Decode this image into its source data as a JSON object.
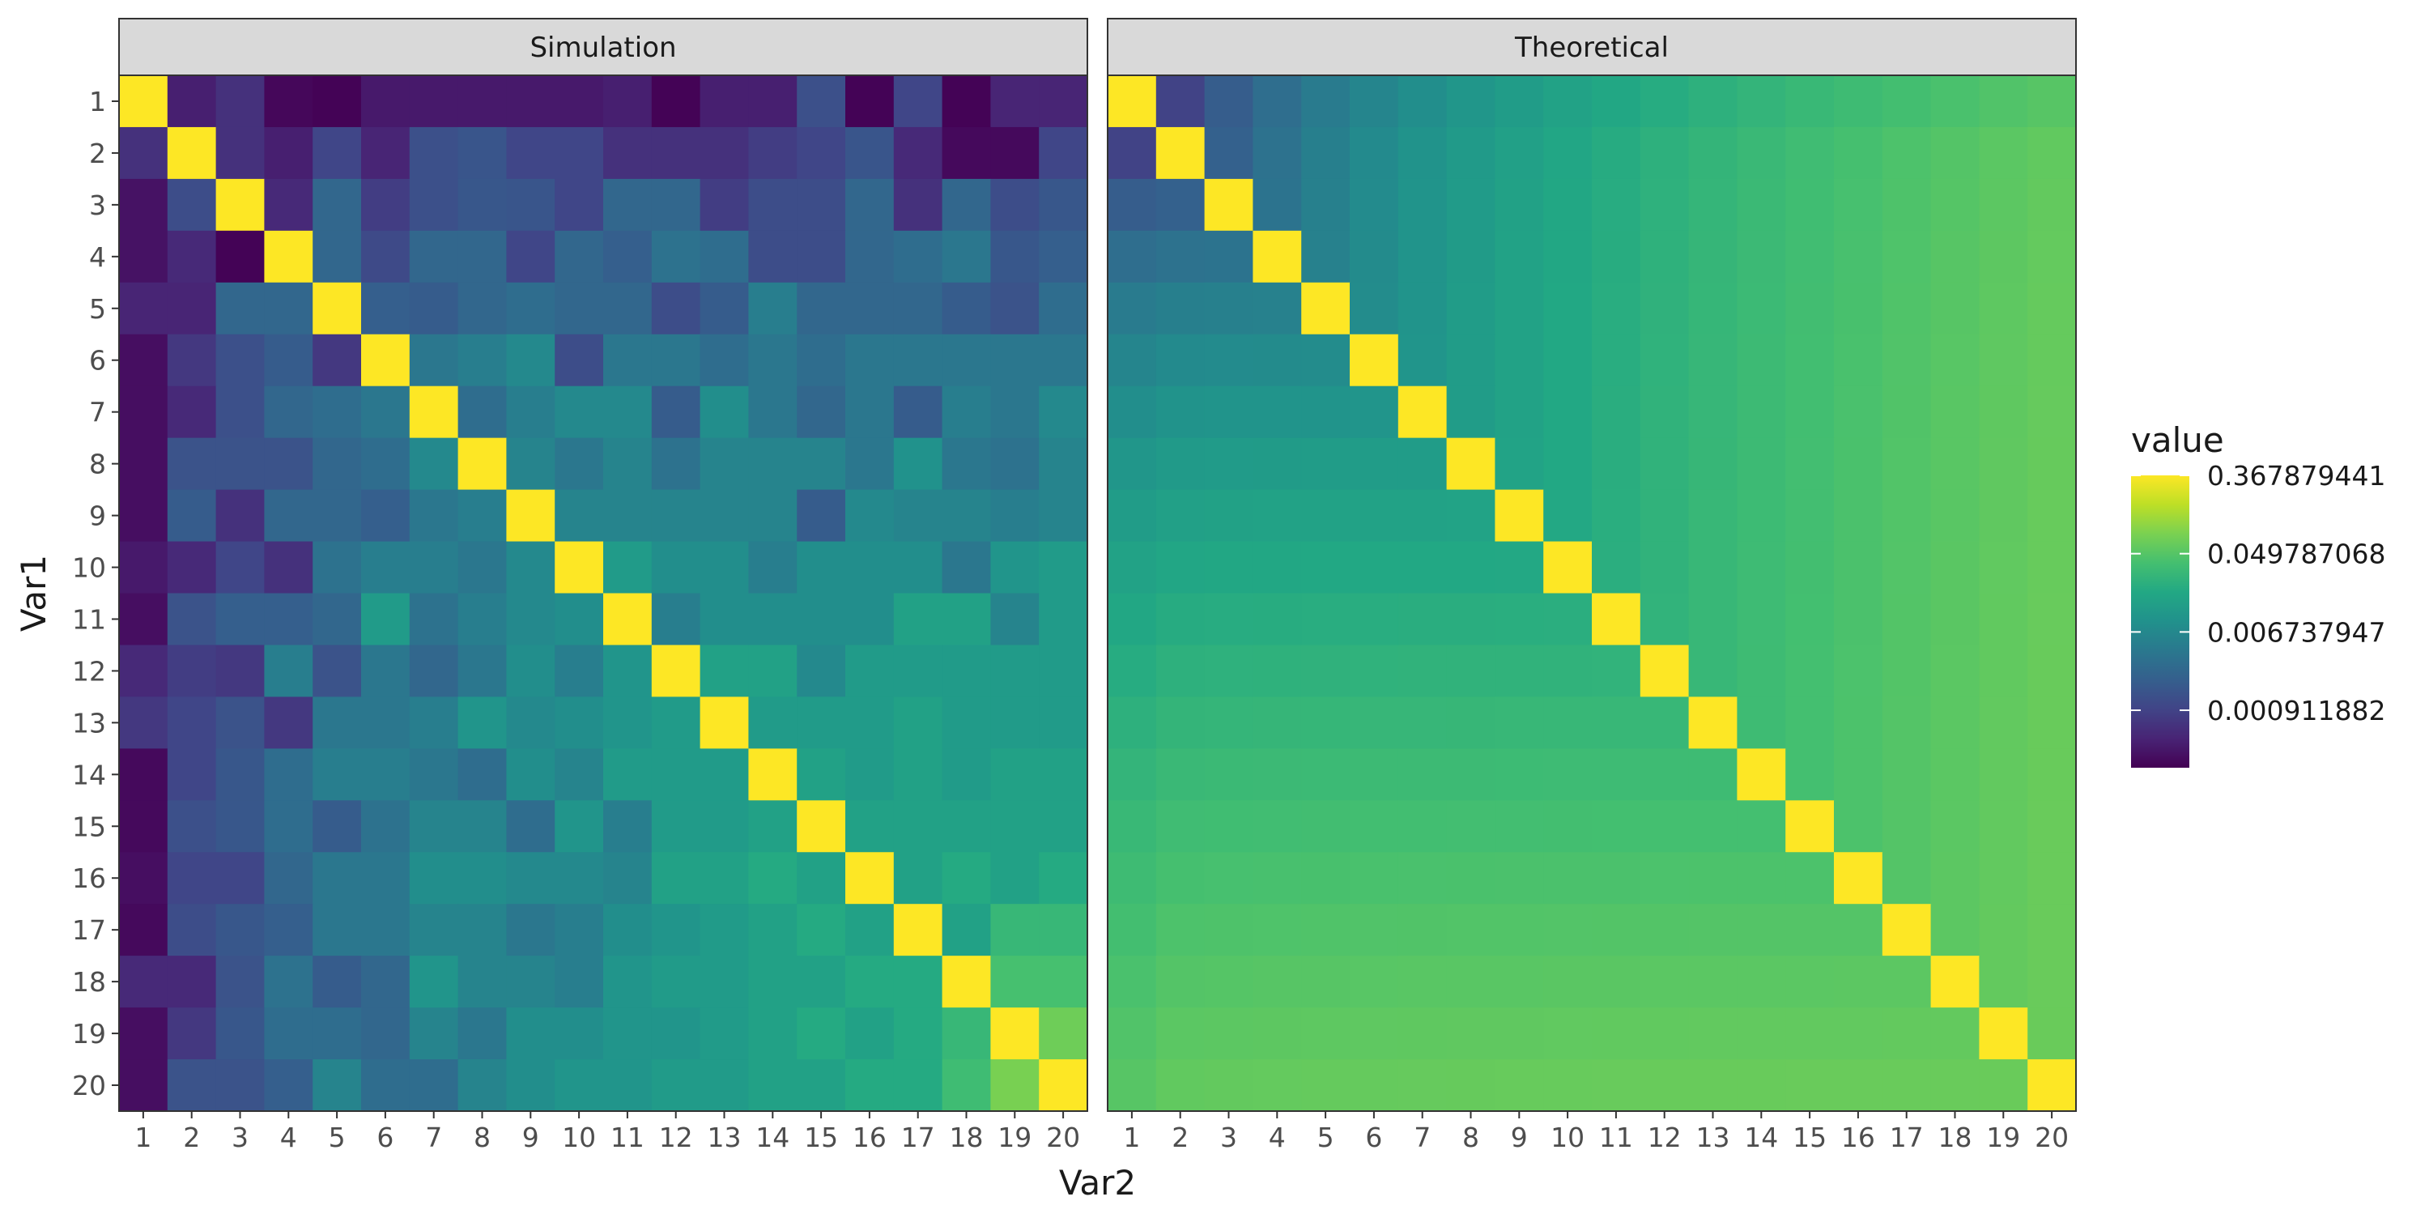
{
  "chart_data": {
    "type": "heatmap",
    "xlabel": "Var2",
    "ylabel": "Var1",
    "x_categories": [
      "1",
      "2",
      "3",
      "4",
      "5",
      "6",
      "7",
      "8",
      "9",
      "10",
      "11",
      "12",
      "13",
      "14",
      "15",
      "16",
      "17",
      "18",
      "19",
      "20"
    ],
    "y_categories": [
      "1",
      "2",
      "3",
      "4",
      "5",
      "6",
      "7",
      "8",
      "9",
      "10",
      "11",
      "12",
      "13",
      "14",
      "15",
      "16",
      "17",
      "18",
      "19",
      "20"
    ],
    "legend": {
      "title": "value",
      "position": "right",
      "scale": "log",
      "colormap": "viridis",
      "range": [
        0.00021,
        0.367879441
      ],
      "breaks": [
        0.367879441,
        0.049787068,
        0.006737947,
        0.000911882
      ],
      "break_labels": [
        "0.367879441",
        "0.049787068",
        "0.006737947",
        "0.000911882"
      ]
    },
    "panels": [
      {
        "title": "Simulation",
        "matrix": [
          [
            0.3679,
            0.0004,
            0.0006,
            0.00024,
            0.00022,
            0.00035,
            0.00035,
            0.00035,
            0.00035,
            0.00035,
            0.0004,
            0.00022,
            0.0004,
            0.0004,
            0.0013,
            0.00022,
            0.001,
            0.00022,
            0.00045,
            0.00045
          ],
          [
            0.0006,
            0.3679,
            0.0006,
            0.0004,
            0.001,
            0.00045,
            0.0013,
            0.0015,
            0.001,
            0.001,
            0.0006,
            0.0006,
            0.0006,
            0.0008,
            0.001,
            0.0015,
            0.0005,
            0.00025,
            0.00025,
            0.001
          ],
          [
            0.0003,
            0.0012,
            0.3679,
            0.0005,
            0.0025,
            0.0008,
            0.0013,
            0.0016,
            0.0015,
            0.001,
            0.0025,
            0.0025,
            0.0008,
            0.0012,
            0.0012,
            0.0025,
            0.0006,
            0.0025,
            0.0012,
            0.0016
          ],
          [
            0.0003,
            0.0005,
            0.00022,
            0.3679,
            0.0025,
            0.0011,
            0.0025,
            0.0025,
            0.001,
            0.0025,
            0.002,
            0.0035,
            0.003,
            0.0012,
            0.0012,
            0.0025,
            0.003,
            0.004,
            0.0016,
            0.002
          ],
          [
            0.00045,
            0.00045,
            0.0025,
            0.0025,
            0.3679,
            0.002,
            0.0018,
            0.0025,
            0.003,
            0.0025,
            0.0025,
            0.0012,
            0.0018,
            0.005,
            0.0025,
            0.0025,
            0.0025,
            0.0018,
            0.0014,
            0.003
          ],
          [
            0.00028,
            0.0007,
            0.0013,
            0.0018,
            0.0007,
            0.3679,
            0.004,
            0.005,
            0.007,
            0.0012,
            0.004,
            0.004,
            0.003,
            0.004,
            0.003,
            0.004,
            0.004,
            0.004,
            0.004,
            0.004
          ],
          [
            0.00028,
            0.0005,
            0.0013,
            0.0025,
            0.003,
            0.004,
            0.3679,
            0.003,
            0.005,
            0.007,
            0.007,
            0.0018,
            0.008,
            0.004,
            0.0025,
            0.004,
            0.0018,
            0.005,
            0.004,
            0.007
          ],
          [
            0.00028,
            0.0014,
            0.0014,
            0.0014,
            0.0025,
            0.003,
            0.007,
            0.3679,
            0.006,
            0.004,
            0.006,
            0.0035,
            0.006,
            0.006,
            0.006,
            0.004,
            0.009,
            0.004,
            0.0035,
            0.006
          ],
          [
            0.00028,
            0.0018,
            0.0006,
            0.0025,
            0.0025,
            0.002,
            0.004,
            0.005,
            0.3679,
            0.006,
            0.006,
            0.006,
            0.006,
            0.006,
            0.0018,
            0.007,
            0.006,
            0.006,
            0.005,
            0.006
          ],
          [
            0.00035,
            0.0005,
            0.001,
            0.0006,
            0.0035,
            0.005,
            0.005,
            0.004,
            0.007,
            0.3679,
            0.012,
            0.008,
            0.008,
            0.005,
            0.008,
            0.008,
            0.008,
            0.004,
            0.01,
            0.012
          ],
          [
            0.00028,
            0.0014,
            0.002,
            0.002,
            0.0025,
            0.012,
            0.0035,
            0.005,
            0.007,
            0.008,
            0.3679,
            0.005,
            0.008,
            0.008,
            0.008,
            0.008,
            0.015,
            0.015,
            0.006,
            0.012
          ],
          [
            0.0005,
            0.0008,
            0.0007,
            0.005,
            0.0014,
            0.004,
            0.0025,
            0.004,
            0.008,
            0.005,
            0.01,
            0.3679,
            0.015,
            0.015,
            0.007,
            0.012,
            0.012,
            0.012,
            0.012,
            0.012
          ],
          [
            0.0007,
            0.001,
            0.0014,
            0.0007,
            0.004,
            0.004,
            0.005,
            0.01,
            0.007,
            0.008,
            0.01,
            0.012,
            0.3679,
            0.012,
            0.012,
            0.012,
            0.015,
            0.012,
            0.012,
            0.012
          ],
          [
            0.00025,
            0.001,
            0.0016,
            0.003,
            0.005,
            0.005,
            0.004,
            0.003,
            0.008,
            0.006,
            0.012,
            0.012,
            0.012,
            0.3679,
            0.015,
            0.012,
            0.015,
            0.012,
            0.015,
            0.015
          ],
          [
            0.00025,
            0.0013,
            0.0016,
            0.003,
            0.0018,
            0.0035,
            0.006,
            0.006,
            0.003,
            0.01,
            0.005,
            0.012,
            0.012,
            0.015,
            0.3679,
            0.015,
            0.015,
            0.015,
            0.015,
            0.015
          ],
          [
            0.00028,
            0.001,
            0.001,
            0.0025,
            0.004,
            0.004,
            0.008,
            0.008,
            0.007,
            0.007,
            0.006,
            0.015,
            0.015,
            0.02,
            0.015,
            0.3679,
            0.015,
            0.02,
            0.015,
            0.02
          ],
          [
            0.00025,
            0.0012,
            0.0016,
            0.002,
            0.004,
            0.004,
            0.006,
            0.006,
            0.004,
            0.005,
            0.008,
            0.01,
            0.012,
            0.015,
            0.02,
            0.015,
            0.3679,
            0.015,
            0.03,
            0.03
          ],
          [
            0.0005,
            0.0005,
            0.0014,
            0.0035,
            0.0018,
            0.0025,
            0.01,
            0.006,
            0.006,
            0.005,
            0.01,
            0.012,
            0.012,
            0.015,
            0.015,
            0.02,
            0.02,
            0.3679,
            0.04,
            0.04
          ],
          [
            0.00028,
            0.0007,
            0.0016,
            0.003,
            0.003,
            0.0025,
            0.006,
            0.004,
            0.008,
            0.008,
            0.01,
            0.01,
            0.012,
            0.015,
            0.02,
            0.015,
            0.02,
            0.03,
            0.3679,
            0.07
          ],
          [
            0.00028,
            0.0014,
            0.0014,
            0.002,
            0.006,
            0.003,
            0.003,
            0.006,
            0.008,
            0.01,
            0.01,
            0.012,
            0.012,
            0.015,
            0.015,
            0.02,
            0.02,
            0.035,
            0.08,
            0.3679
          ]
        ]
      },
      {
        "title": "Theoretical",
        "matrix": "computed"
      }
    ]
  }
}
